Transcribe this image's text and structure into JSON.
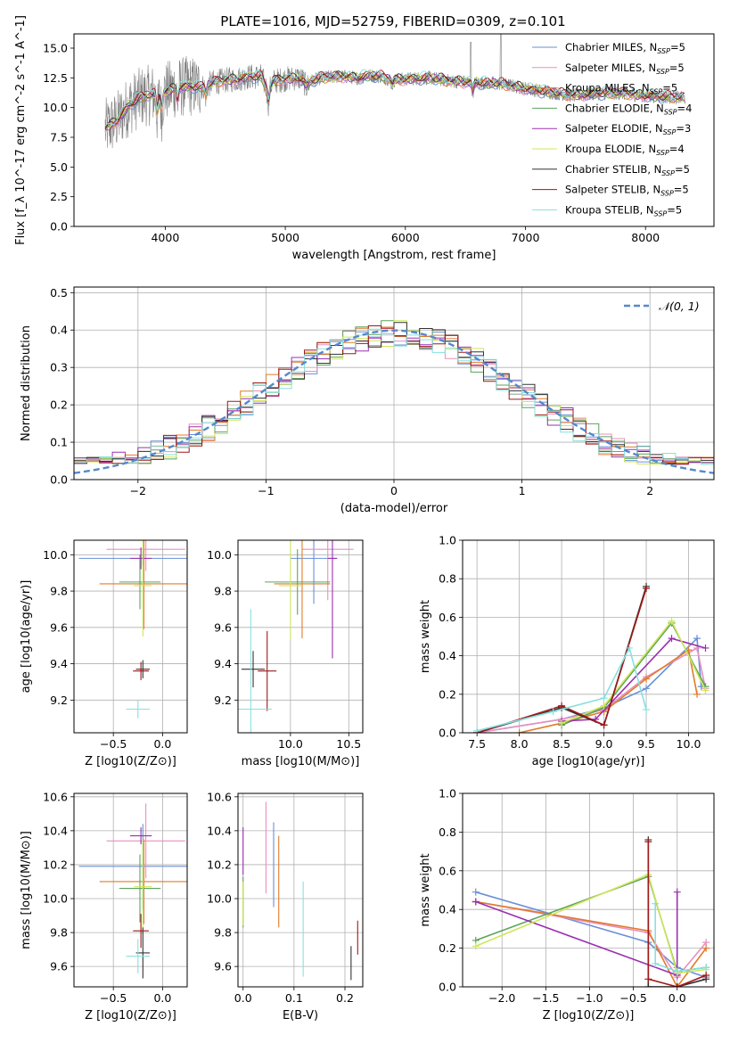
{
  "figure": {
    "title": "PLATE=1016, MJD=52759, FIBERID=0309, z=0.101"
  },
  "series_styles": [
    {
      "name": "Chabrier MILES, N$_{SSP}$=5",
      "color": "#6a8fd8"
    },
    {
      "name": "Salpeter MILES, N$_{SSP}$=5",
      "color": "#e98fbf"
    },
    {
      "name": "Kroupa MILES, N$_{SSP}$=5",
      "color": "#e07b2a"
    },
    {
      "name": "Chabrier ELODIE, N$_{SSP}$=4",
      "color": "#5ca35a"
    },
    {
      "name": "Salpeter ELODIE, N$_{SSP}$=3",
      "color": "#9b30b0"
    },
    {
      "name": "Kroupa ELODIE, N$_{SSP}$=4",
      "color": "#cfe65a"
    },
    {
      "name": "Chabrier STELIB, N$_{SSP}$=5",
      "color": "#333333"
    },
    {
      "name": "Salpeter STELIB, N$_{SSP}$=5",
      "color": "#a01818"
    },
    {
      "name": "Kroupa STELIB, N$_{SSP}$=5",
      "color": "#88e0e0"
    }
  ],
  "chart_data": [
    {
      "id": "spectrum",
      "type": "line",
      "xlabel": "wavelength [Angstrom, rest frame]",
      "ylabel": "Flux [f_λ 10^-17 erg cm^-2 s^-1 A^-1]",
      "xlim": [
        3240,
        8570
      ],
      "ylim": [
        0,
        16.2
      ],
      "xticks": [
        4000,
        5000,
        6000,
        7000,
        8000
      ],
      "yticks": [
        0.0,
        2.5,
        5.0,
        7.5,
        10.0,
        12.5,
        15.0
      ],
      "grid": false,
      "legend": "top-right",
      "data_series": {
        "name": "data",
        "color": "#808080"
      },
      "model_profile": {
        "x": [
          3500,
          3600,
          3700,
          3800,
          3900,
          4000,
          4100,
          4200,
          4300,
          4400,
          4500,
          4600,
          4700,
          4800,
          4850,
          4900,
          5000,
          5100,
          5200,
          5300,
          5400,
          5500,
          5600,
          5700,
          5800,
          5900,
          6000,
          6200,
          6400,
          6600,
          6800,
          7000,
          7200,
          7400,
          7600,
          7800,
          8000,
          8200,
          8300
        ],
        "y": [
          8.2,
          8.9,
          10.2,
          10.9,
          11.1,
          11.3,
          11.7,
          11.8,
          11.7,
          12.1,
          12.3,
          12.4,
          12.6,
          12.6,
          11.5,
          12.2,
          12.4,
          12.5,
          12.2,
          12.5,
          12.6,
          12.6,
          12.5,
          12.7,
          12.6,
          12.3,
          12.4,
          12.5,
          12.2,
          12.1,
          12.0,
          11.6,
          11.3,
          11.0,
          11.2,
          11.2,
          11.0,
          10.9,
          10.8
        ]
      }
    },
    {
      "id": "residuals",
      "type": "bar",
      "xlabel": "(data-model)/error",
      "ylabel": "Normed distribution",
      "xlim": [
        -2.5,
        2.5
      ],
      "ylim": [
        0,
        0.515
      ],
      "xticks": [
        -2,
        -1,
        0,
        1,
        2
      ],
      "yticks": [
        0.0,
        0.1,
        0.2,
        0.3,
        0.4,
        0.5
      ],
      "grid": true,
      "legend": "top-right",
      "reference": {
        "name": "𝒩(0, 1)",
        "color": "#5588cc",
        "mean": 0,
        "sigma": 1
      },
      "bins": {
        "start": -2.5,
        "width": 0.1,
        "count": 50
      }
    },
    {
      "id": "age_vs_Z",
      "type": "scatter",
      "xlabel": "Z [log10(Z/Z⊙)]",
      "ylabel": "age  [log10(age/yr)]",
      "xlim": [
        -0.9,
        0.25
      ],
      "ylim": [
        9.02,
        10.08
      ],
      "xticks": [
        -0.5,
        0.0
      ],
      "yticks": [
        9.2,
        9.4,
        9.6,
        9.8,
        10.0
      ],
      "grid": true,
      "points": [
        {
          "series": 0,
          "x": -0.2,
          "y": 9.98,
          "xerr": 0.65,
          "yerr": 0.04
        },
        {
          "series": 1,
          "x": -0.17,
          "y": 10.03,
          "xerr": 0.4,
          "yerr": 0.12
        },
        {
          "series": 2,
          "x": -0.19,
          "y": 9.84,
          "xerr": 0.45,
          "yerr": 0.25
        },
        {
          "series": 3,
          "x": -0.23,
          "y": 9.85,
          "xerr": 0.21,
          "yerr": 0.15
        },
        {
          "series": 4,
          "x": -0.22,
          "y": 9.98,
          "xerr": 0.11,
          "yerr": 0.06
        },
        {
          "series": 5,
          "x": -0.2,
          "y": 9.83,
          "xerr": 0.09,
          "yerr": 0.28
        },
        {
          "series": 6,
          "x": -0.2,
          "y": 9.37,
          "xerr": 0.07,
          "yerr": 0.05
        },
        {
          "series": 7,
          "x": -0.22,
          "y": 9.36,
          "xerr": 0.08,
          "yerr": 0.05
        },
        {
          "series": 8,
          "x": -0.25,
          "y": 9.15,
          "xerr": 0.12,
          "yerr": 0.05
        }
      ]
    },
    {
      "id": "age_vs_mass",
      "type": "scatter",
      "xlabel": "mass [log10(M/M⊙)]",
      "ylabel": "",
      "xlim": [
        9.55,
        10.62
      ],
      "ylim": [
        9.02,
        10.08
      ],
      "xticks": [
        9.5,
        10.0,
        10.5
      ],
      "yticks": [
        9.2,
        9.4,
        9.6,
        9.8,
        10.0
      ],
      "grid": true,
      "points": [
        {
          "series": 0,
          "x": 10.2,
          "y": 9.98,
          "xerr": 0.2,
          "yerr": 0.25
        },
        {
          "series": 1,
          "x": 10.32,
          "y": 10.03,
          "xerr": 0.22,
          "yerr": 0.28
        },
        {
          "series": 2,
          "x": 10.1,
          "y": 9.84,
          "xerr": 0.24,
          "yerr": 0.3
        },
        {
          "series": 3,
          "x": 10.06,
          "y": 9.85,
          "xerr": 0.28,
          "yerr": 0.18
        },
        {
          "series": 4,
          "x": 10.36,
          "y": 9.98,
          "xerr": 0.04,
          "yerr": 0.55
        },
        {
          "series": 5,
          "x": 10.0,
          "y": 9.83,
          "xerr": 0.1,
          "yerr": 0.3
        },
        {
          "series": 6,
          "x": 9.68,
          "y": 9.37,
          "xerr": 0.1,
          "yerr": 0.1
        },
        {
          "series": 7,
          "x": 9.8,
          "y": 9.36,
          "xerr": 0.08,
          "yerr": 0.22
        },
        {
          "series": 8,
          "x": 9.66,
          "y": 9.15,
          "xerr": 0.18,
          "yerr": 0.55
        }
      ]
    },
    {
      "id": "massweight_vs_age",
      "type": "line",
      "xlabel": "age  [log10(age/yr)]",
      "ylabel": "mass weight",
      "xlim": [
        7.33,
        10.3
      ],
      "ylim": [
        0,
        1
      ],
      "xticks": [
        7.5,
        8.0,
        8.5,
        9.0,
        9.5,
        10.0
      ],
      "yticks": [
        0.0,
        0.2,
        0.4,
        0.6,
        0.8,
        1.0
      ],
      "grid": true,
      "series": [
        {
          "series": 0,
          "x": [
            7.5,
            8.5,
            9.0,
            9.5,
            10.1,
            10.15
          ],
          "y": [
            0.0,
            0.07,
            0.13,
            0.23,
            0.49,
            0.24
          ]
        },
        {
          "series": 1,
          "x": [
            7.5,
            8.5,
            9.0,
            9.5,
            10.1,
            10.2
          ],
          "y": [
            0.0,
            0.07,
            0.12,
            0.29,
            0.44,
            0.23
          ]
        },
        {
          "series": 2,
          "x": [
            8.0,
            8.5,
            9.0,
            9.5,
            10.0,
            10.1
          ],
          "y": [
            0.0,
            0.05,
            0.11,
            0.28,
            0.43,
            0.2
          ]
        },
        {
          "series": 3,
          "x": [
            8.5,
            9.0,
            9.8,
            10.2
          ],
          "y": [
            0.04,
            0.13,
            0.57,
            0.24
          ]
        },
        {
          "series": 4,
          "x": [
            8.5,
            8.9,
            9.8,
            10.2
          ],
          "y": [
            0.06,
            0.07,
            0.49,
            0.44
          ]
        },
        {
          "series": 5,
          "x": [
            8.5,
            9.0,
            9.8,
            10.2
          ],
          "y": [
            0.05,
            0.14,
            0.58,
            0.22
          ]
        },
        {
          "series": 6,
          "x": [
            7.5,
            8.5,
            9.0,
            9.5
          ],
          "y": [
            0.0,
            0.13,
            0.04,
            0.76
          ]
        },
        {
          "series": 7,
          "x": [
            7.5,
            8.5,
            9.0,
            9.5
          ],
          "y": [
            0.0,
            0.14,
            0.04,
            0.75
          ]
        },
        {
          "series": 8,
          "x": [
            7.5,
            8.4,
            9.0,
            9.3,
            9.5
          ],
          "y": [
            0.01,
            0.11,
            0.18,
            0.44,
            0.12
          ]
        }
      ]
    },
    {
      "id": "mass_vs_Z",
      "type": "scatter",
      "xlabel": "Z [log10(Z/Z⊙)]",
      "ylabel": "mass [log10(M/M⊙)]",
      "xlim": [
        -0.9,
        0.25
      ],
      "ylim": [
        9.48,
        10.62
      ],
      "xticks": [
        -0.5,
        0.0
      ],
      "yticks": [
        9.6,
        9.8,
        10.0,
        10.2,
        10.4,
        10.6
      ],
      "grid": true,
      "points": [
        {
          "series": 0,
          "x": -0.2,
          "y": 10.19,
          "xerr": 0.65,
          "yerr": 0.25
        },
        {
          "series": 1,
          "x": -0.17,
          "y": 10.34,
          "xerr": 0.4,
          "yerr": 0.22
        },
        {
          "series": 2,
          "x": -0.19,
          "y": 10.1,
          "xerr": 0.45,
          "yerr": 0.25
        },
        {
          "series": 3,
          "x": -0.23,
          "y": 10.06,
          "xerr": 0.21,
          "yerr": 0.2
        },
        {
          "series": 4,
          "x": -0.22,
          "y": 10.37,
          "xerr": 0.11,
          "yerr": 0.05
        },
        {
          "series": 5,
          "x": -0.2,
          "y": 10.07,
          "xerr": 0.09,
          "yerr": 0.28
        },
        {
          "series": 6,
          "x": -0.2,
          "y": 9.68,
          "xerr": 0.07,
          "yerr": 0.15
        },
        {
          "series": 7,
          "x": -0.22,
          "y": 9.81,
          "xerr": 0.08,
          "yerr": 0.1
        },
        {
          "series": 8,
          "x": -0.25,
          "y": 9.66,
          "xerr": 0.12,
          "yerr": 0.1
        }
      ]
    },
    {
      "id": "mass_vs_EBV",
      "type": "scatter",
      "xlabel": "E(B-V)",
      "ylabel": "",
      "xlim": [
        -0.01,
        0.235
      ],
      "ylim": [
        9.48,
        10.62
      ],
      "xticks": [
        0.0,
        0.1,
        0.2
      ],
      "yticks": [
        9.6,
        9.8,
        10.0,
        10.2,
        10.4,
        10.6
      ],
      "grid": true,
      "points": [
        {
          "series": 0,
          "x": 0.06,
          "y": 10.2,
          "xerr": 0,
          "yerr": 0.25
        },
        {
          "series": 1,
          "x": 0.045,
          "y": 10.3,
          "xerr": 0,
          "yerr": 0.27
        },
        {
          "series": 2,
          "x": 0.07,
          "y": 10.1,
          "xerr": 0,
          "yerr": 0.27
        },
        {
          "series": 3,
          "x": 0.0,
          "y": 9.98,
          "xerr": 0,
          "yerr": 0.15
        },
        {
          "series": 4,
          "x": 0.0,
          "y": 10.28,
          "xerr": 0,
          "yerr": 0.14
        },
        {
          "series": 5,
          "x": 0.0,
          "y": 9.97,
          "xerr": 0,
          "yerr": 0.13
        },
        {
          "series": 6,
          "x": 0.212,
          "y": 9.62,
          "xerr": 0,
          "yerr": 0.1
        },
        {
          "series": 7,
          "x": 0.225,
          "y": 9.77,
          "xerr": 0,
          "yerr": 0.1
        },
        {
          "series": 8,
          "x": 0.118,
          "y": 9.82,
          "xerr": 0,
          "yerr": 0.28
        }
      ]
    },
    {
      "id": "massweight_vs_Z",
      "type": "line",
      "xlabel": "Z [log10(Z/Z⊙)]",
      "ylabel": "mass weight",
      "xlim": [
        -2.45,
        0.42
      ],
      "ylim": [
        0,
        1
      ],
      "xticks": [
        -2.0,
        -1.5,
        -1.0,
        -0.5,
        0.0
      ],
      "yticks": [
        0.0,
        0.2,
        0.4,
        0.6,
        0.8,
        1.0
      ],
      "grid": true,
      "series": [
        {
          "series": 0,
          "x": [
            -2.3,
            -0.33,
            0.0,
            0.33
          ],
          "y": [
            0.49,
            0.23,
            0.1,
            0.05
          ]
        },
        {
          "series": 1,
          "x": [
            -2.3,
            -0.33,
            0.0,
            0.33
          ],
          "y": [
            0.44,
            0.28,
            0.05,
            0.23
          ]
        },
        {
          "series": 2,
          "x": [
            -2.3,
            -0.33,
            0.0,
            0.33
          ],
          "y": [
            0.44,
            0.29,
            0.0,
            0.2
          ]
        },
        {
          "series": 3,
          "x": [
            -2.3,
            -0.33,
            0.0,
            0.33
          ],
          "y": [
            0.24,
            0.57,
            0.08,
            0.1
          ]
        },
        {
          "series": 4,
          "x": [
            -2.3,
            0.0,
            0.0
          ],
          "y": [
            0.44,
            0.06,
            0.49
          ]
        },
        {
          "series": 5,
          "x": [
            -2.3,
            -0.33,
            0.0,
            0.33
          ],
          "y": [
            0.21,
            0.58,
            0.07,
            0.09
          ]
        },
        {
          "series": 6,
          "x": [
            -0.33,
            -0.33,
            0.0,
            0.33
          ],
          "y": [
            0.76,
            0.0,
            0.0,
            0.04
          ]
        },
        {
          "series": 7,
          "x": [
            -0.33,
            -0.33,
            0.0,
            0.33
          ],
          "y": [
            0.75,
            0.04,
            0.0,
            0.06
          ]
        },
        {
          "series": 8,
          "x": [
            -0.25,
            -0.25,
            0.0,
            0.33
          ],
          "y": [
            0.43,
            0.12,
            0.08,
            0.1
          ]
        }
      ]
    }
  ]
}
